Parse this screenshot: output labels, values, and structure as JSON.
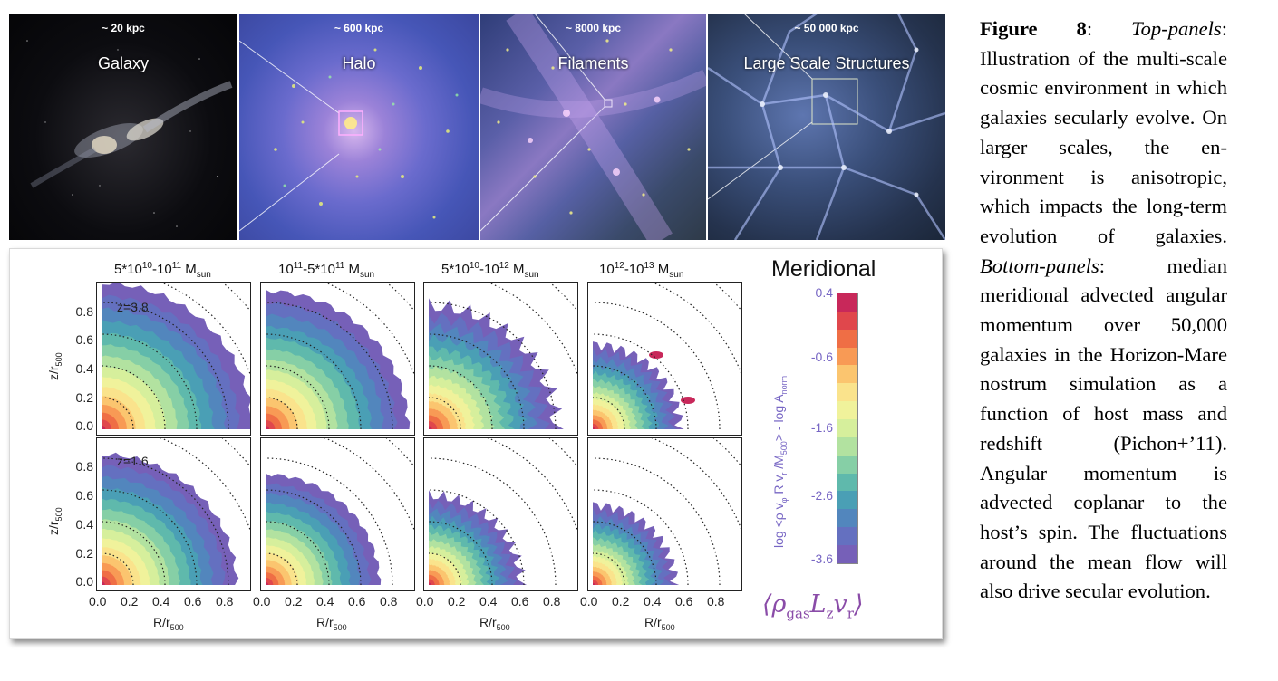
{
  "top_panels": [
    {
      "scale": "~ 20 kpc",
      "title": "Galaxy"
    },
    {
      "scale": "~ 600 kpc",
      "title": "Halo"
    },
    {
      "scale": "~ 8000 kpc",
      "title": "Filaments"
    },
    {
      "scale": "~ 50 000 kpc",
      "title": "Large Scale Structures"
    }
  ],
  "column_headers": [
    {
      "base": "5*10",
      "exp1": "10",
      "mid": "-10",
      "exp2": "11",
      "unit": " M",
      "sub": "sun"
    },
    {
      "base": "10",
      "exp1": "11",
      "mid": "-5*10",
      "exp2": "11",
      "unit": " M",
      "sub": "sun"
    },
    {
      "base": "5*10",
      "exp1": "10",
      "mid": "-10",
      "exp2": "12",
      "unit": " M",
      "sub": "sun"
    },
    {
      "base": "10",
      "exp1": "12",
      "mid": "-10",
      "exp2": "13",
      "unit": " M",
      "sub": "sun"
    }
  ],
  "redshift_labels": [
    "z=3.8",
    "z=1.6"
  ],
  "y_axis": {
    "label": "z/r",
    "sub": "500",
    "ticks": [
      "0.8",
      "0.6",
      "0.4",
      "0.2",
      "0.0"
    ]
  },
  "x_axis": {
    "label": "R/r",
    "sub": "500",
    "ticks": [
      "0.0",
      "0.2",
      "0.4",
      "0.6",
      "0.8"
    ]
  },
  "title": "Meridional",
  "colorbar": {
    "ticks": [
      "0.4",
      "-0.6",
      "-1.6",
      "-2.6",
      "-3.6"
    ],
    "label_pre": "log <ρ v",
    "label_phi": "φ",
    "label_mid": " R v",
    "label_r": "r",
    "label_post": " /M",
    "label_500": "500",
    "label_end": "> - log A",
    "label_norm": "norm",
    "colors": [
      "#c8285a",
      "#e0474c",
      "#ef6e45",
      "#f89a55",
      "#fbc56f",
      "#fae38c",
      "#f0f29b",
      "#d6ef9c",
      "#b2e2a0",
      "#86cfa6",
      "#5fb9ac",
      "#4a9fb5",
      "#5286bd",
      "#6470c0",
      "#7660b8"
    ]
  },
  "math_label": {
    "rho": "⟨ρ",
    "gas": "gas",
    "rest": "L",
    "z": "z",
    "v": "v",
    "r": "r",
    "close": "⟩"
  },
  "caption": {
    "fig": "Figure 8",
    "colon": ": ",
    "top_label": "Top-panels",
    "top_text": ": Illustration of the multi-scale cosmic environment in which galaxies secularly evolve. On larger scales, the en-vironment is anisotropic, which impacts the long-term evolution of galaxies. ",
    "bottom_label": "Bottom-panels",
    "bottom_text": ": median meridional advected angular momentum over 50,000 galaxies in the Horizon-Mare nostrum simulation as a function of host mass and redshift (Pichon+’11). Angular momentum is advected coplanar to the host’s spin. The fluctuations around the mean flow will also drive secular evolution."
  }
}
